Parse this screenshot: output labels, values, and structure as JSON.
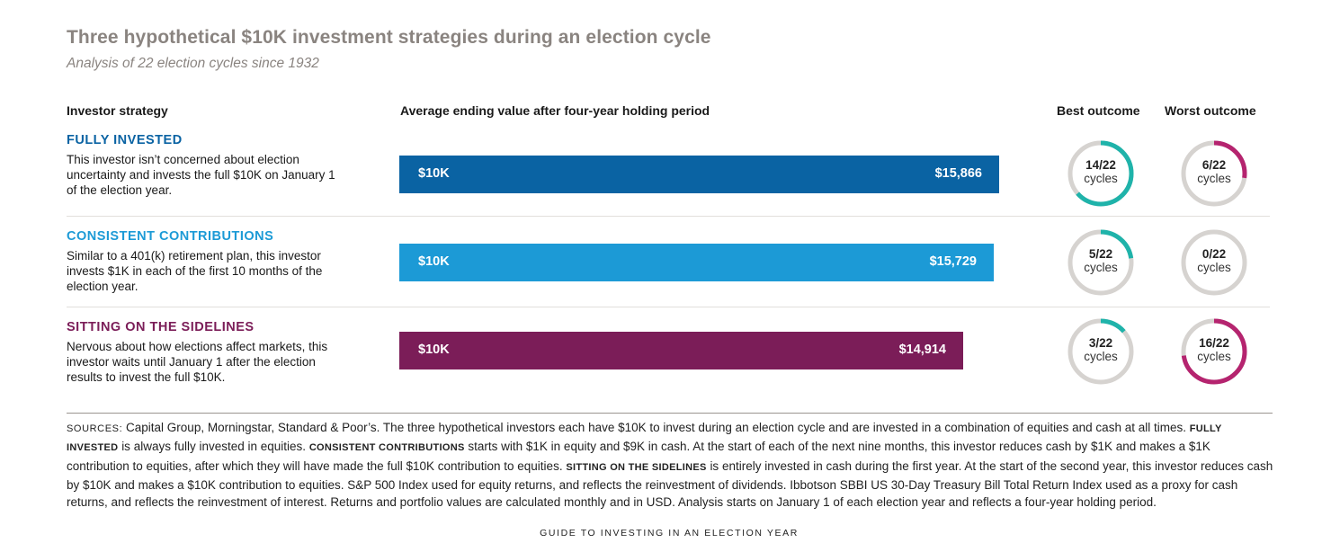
{
  "header": {
    "title": "Three hypothetical $10K investment strategies during an election cycle",
    "subtitle": "Analysis of 22 election cycles since 1932"
  },
  "columns": {
    "strategy": "Investor strategy",
    "value": "Average ending value after four-year holding period",
    "best": "Best outcome",
    "worst": "Worst outcome"
  },
  "colors": {
    "ring_track": "#d6d3d0",
    "best_ring": "#1fb3aa",
    "worst_ring": "#b5246f"
  },
  "chart_data": {
    "type": "bar",
    "orientation": "horizontal",
    "categories": [
      "FULLY INVESTED",
      "CONSISTENT CONTRIBUTIONS",
      "SITTING ON THE SIDELINES"
    ],
    "start_label": "$10K",
    "values": [
      15866,
      15729,
      14914
    ],
    "value_labels": [
      "$15,866",
      "$15,729",
      "$14,914"
    ],
    "best_outcome": [
      14,
      5,
      3
    ],
    "worst_outcome": [
      6,
      0,
      16
    ],
    "total_cycles": 22,
    "outcome_unit": "cycles"
  },
  "rows": [
    {
      "name": "FULLY INVESTED",
      "color": "#0a63a3",
      "desc": "This investor isn’t concerned about election uncertainty and invests the full $10K on January 1 of the election year.",
      "best_label": "14/22",
      "worst_label": "6/22"
    },
    {
      "name": "CONSISTENT CONTRIBUTIONS",
      "color": "#1c9ad6",
      "desc": "Similar to a 401(k) retirement plan, this investor invests $1K in each of the first 10 months of the election year.",
      "best_label": "5/22",
      "worst_label": "0/22"
    },
    {
      "name": "SITTING ON THE SIDELINES",
      "color": "#7b1d58",
      "desc": "Nervous about how elections affect markets, this investor waits until January 1 after the election results to invest the full $10K.",
      "best_label": "3/22",
      "worst_label": "16/22"
    }
  ],
  "footer": {
    "sources_label": "SOURCES:",
    "t1": "Capital Group, Morningstar, Standard & Poor’s. The three hypothetical investors each have $10K to invest during an election cycle and are invested in a combination of equities and cash at all times.",
    "sc1": "FULLY INVESTED",
    "t2": "is always fully invested in equities.",
    "sc2": "CONSISTENT CONTRIBUTIONS",
    "t3": "starts with $1K in equity and $9K in cash. At the start of each of the next nine months, this investor reduces cash by $1K and makes a $1K contribution to equities, after which they will have made the full $10K contribution to equities.",
    "sc3": "SITTING ON THE SIDELINES",
    "t4": "is entirely invested in cash during the first year. At the start of the second year, this investor reduces cash by $10K and makes a $10K contribution to equities. S&P 500 Index used for equity returns, and reflects the reinvestment of dividends. Ibbotson SBBI US 30-Day Treasury Bill Total Return Index used as a proxy for cash returns, and reflects the reinvestment of interest. Returns and portfolio values are calculated monthly and in USD. Analysis starts on January 1 of each election year and reflects a four-year holding period.",
    "guide": "GUIDE TO INVESTING IN AN ELECTION YEAR"
  }
}
